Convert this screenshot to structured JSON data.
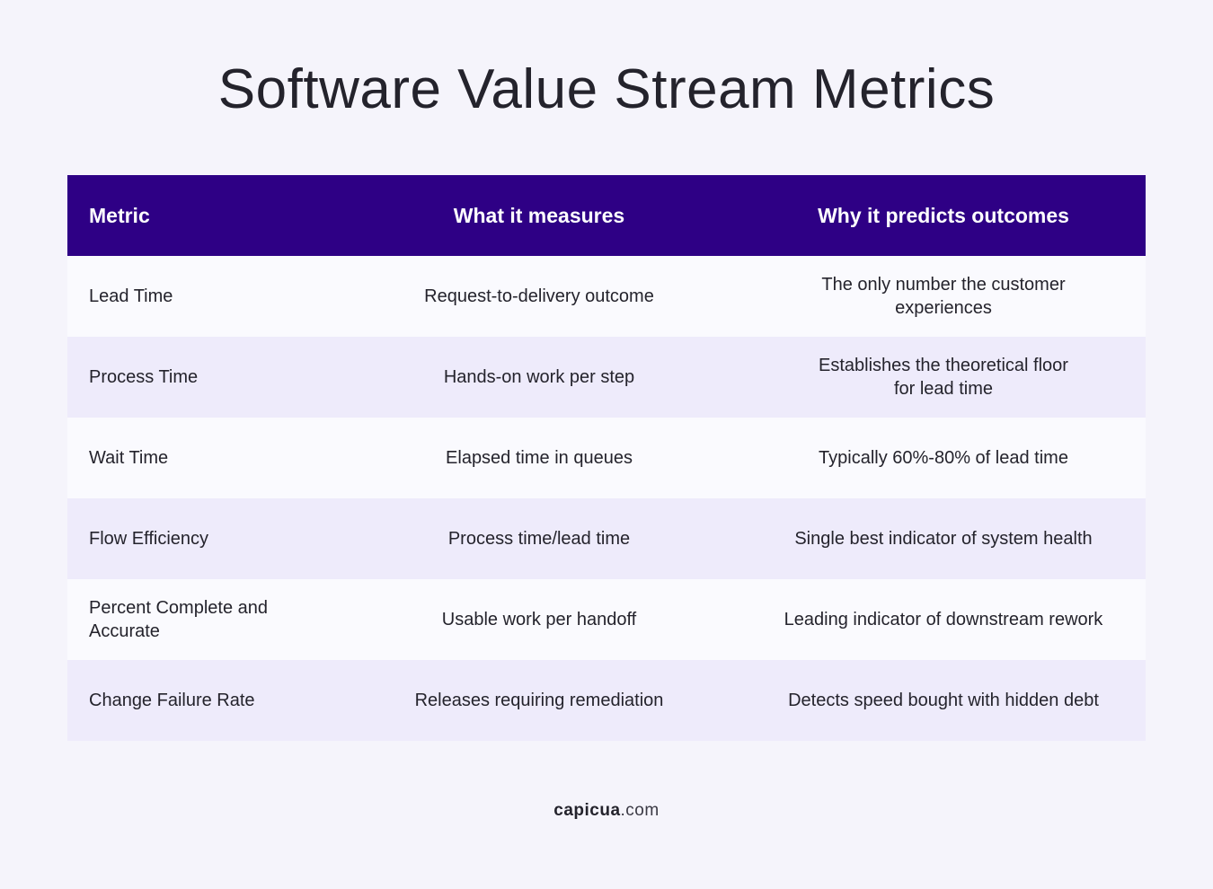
{
  "title": "Software Value Stream Metrics",
  "table": {
    "headers": [
      "Metric",
      "What it measures",
      "Why it predicts outcomes"
    ],
    "rows": [
      {
        "metric": "Lead Time",
        "measures": "Request-to-delivery outcome",
        "predicts": "The only number the customer experiences"
      },
      {
        "metric": "Process Time",
        "measures": "Hands-on work per step",
        "predicts": "Establishes the theoretical floor for lead time"
      },
      {
        "metric": "Wait Time",
        "measures": "Elapsed time in queues",
        "predicts": "Typically 60%-80% of lead time"
      },
      {
        "metric": "Flow Efficiency",
        "measures": "Process time/lead time",
        "predicts": "Single best indicator of system health"
      },
      {
        "metric": "Percent Complete and Accurate",
        "measures": "Usable work per handoff",
        "predicts": "Leading indicator of downstream rework"
      },
      {
        "metric": "Change Failure Rate",
        "measures": "Releases requiring remediation",
        "predicts": "Detects speed bought with hidden debt"
      }
    ]
  },
  "footer": {
    "brand": "capicua",
    "tld": ".com"
  },
  "colors": {
    "background": "#f5f4fb",
    "header": "#2e0085",
    "row_light": "#fafafe",
    "row_tint": "#eeebfb",
    "text": "#24232c"
  }
}
